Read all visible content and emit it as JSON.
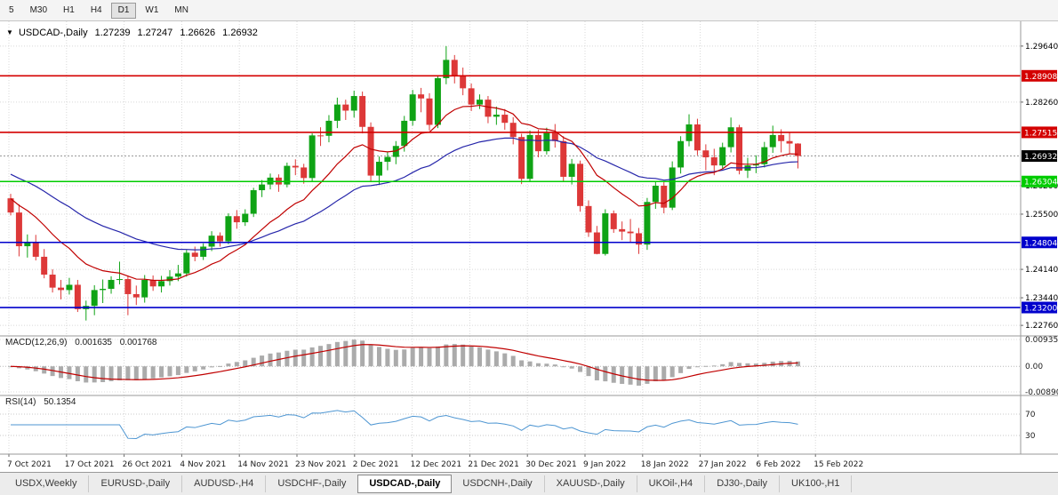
{
  "toolbar": {
    "timeframes": [
      {
        "label": "5",
        "active": false
      },
      {
        "label": "M30",
        "active": false
      },
      {
        "label": "H1",
        "active": false
      },
      {
        "label": "H4",
        "active": false
      },
      {
        "label": "D1",
        "active": true
      },
      {
        "label": "W1",
        "active": false
      },
      {
        "label": "MN",
        "active": false
      }
    ]
  },
  "chart_header": {
    "dropdown_marker": "▼",
    "symbol": "USDCAD-,Daily",
    "open": "1.27239",
    "high": "1.27247",
    "low": "1.26626",
    "close": "1.26932"
  },
  "price_axis": {
    "ticks": [
      "1.29640",
      "1.28260",
      "1.26200",
      "1.25500",
      "1.24140",
      "1.23440",
      "1.22760"
    ]
  },
  "levels": {
    "hlines": [
      {
        "price": "1.28908",
        "color": "#D40000"
      },
      {
        "price": "1.27515",
        "color": "#D40000"
      },
      {
        "price": "1.26304",
        "color": "#00CC00"
      },
      {
        "price": "1.24804",
        "color": "#0000CC"
      },
      {
        "price": "1.23200",
        "color": "#0000CC"
      }
    ],
    "current_price": {
      "value": "1.26932",
      "badge_color": "#000000"
    }
  },
  "chart_data": {
    "type": "candlestick",
    "symbol": "USDCAD",
    "timeframe": "Daily",
    "title": "USDCAD-,Daily",
    "y_range": [
      1.225,
      1.3025
    ],
    "x_labels": [
      "7 Oct 2021",
      "17 Oct 2021",
      "26 Oct 2021",
      "4 Nov 2021",
      "14 Nov 2021",
      "23 Nov 2021",
      "2 Dec 2021",
      "12 Dec 2021",
      "21 Dec 2021",
      "30 Dec 2021",
      "9 Jan 2022",
      "18 Jan 2022",
      "27 Jan 2022",
      "6 Feb 2022",
      "15 Feb 2022"
    ],
    "up_color": "#0FA315",
    "down_color": "#DD3838",
    "ma_fast": {
      "period": 13,
      "color": "#C00000"
    },
    "ma_slow": {
      "period": 34,
      "color": "#2626AA"
    },
    "candles_ohlc": [
      [
        1.2589,
        1.26,
        1.2547,
        1.2554
      ],
      [
        1.2554,
        1.2574,
        1.2446,
        1.2471
      ],
      [
        1.2471,
        1.25,
        1.2443,
        1.2482
      ],
      [
        1.2482,
        1.2499,
        1.2436,
        1.2445
      ],
      [
        1.2445,
        1.2464,
        1.2392,
        1.2401
      ],
      [
        1.2401,
        1.2414,
        1.2357,
        1.2369
      ],
      [
        1.2369,
        1.2388,
        1.234,
        1.2363
      ],
      [
        1.2363,
        1.2393,
        1.2352,
        1.2376
      ],
      [
        1.2376,
        1.2388,
        1.2309,
        1.2316
      ],
      [
        1.2316,
        1.2337,
        1.2288,
        1.2324
      ],
      [
        1.2324,
        1.2375,
        1.2301,
        1.2363
      ],
      [
        1.2363,
        1.2389,
        1.2331,
        1.2366
      ],
      [
        1.2366,
        1.2397,
        1.2354,
        1.2388
      ],
      [
        1.2388,
        1.2433,
        1.2377,
        1.239
      ],
      [
        1.239,
        1.2399,
        1.2301,
        1.2353
      ],
      [
        1.2353,
        1.2374,
        1.2326,
        1.2345
      ],
      [
        1.2345,
        1.24,
        1.2332,
        1.2388
      ],
      [
        1.2388,
        1.2399,
        1.2361,
        1.2372
      ],
      [
        1.2372,
        1.2398,
        1.2357,
        1.2385
      ],
      [
        1.2385,
        1.2412,
        1.2374,
        1.2396
      ],
      [
        1.2396,
        1.2425,
        1.2385,
        1.2404
      ],
      [
        1.2404,
        1.2462,
        1.2396,
        1.2455
      ],
      [
        1.2455,
        1.247,
        1.2434,
        1.2445
      ],
      [
        1.2445,
        1.2478,
        1.2437,
        1.247
      ],
      [
        1.247,
        1.2508,
        1.2459,
        1.2497
      ],
      [
        1.2497,
        1.2505,
        1.247,
        1.2483
      ],
      [
        1.2483,
        1.2552,
        1.2476,
        1.2545
      ],
      [
        1.2545,
        1.256,
        1.2514,
        1.253
      ],
      [
        1.253,
        1.2562,
        1.2521,
        1.2551
      ],
      [
        1.2551,
        1.2615,
        1.2543,
        1.2609
      ],
      [
        1.2609,
        1.2634,
        1.2592,
        1.2623
      ],
      [
        1.2623,
        1.265,
        1.2611,
        1.264
      ],
      [
        1.264,
        1.2648,
        1.2605,
        1.2623
      ],
      [
        1.2623,
        1.2677,
        1.2616,
        1.2669
      ],
      [
        1.2669,
        1.2685,
        1.2646,
        1.2665
      ],
      [
        1.2665,
        1.2674,
        1.2625,
        1.2639
      ],
      [
        1.2639,
        1.2749,
        1.2632,
        1.2744
      ],
      [
        1.2744,
        1.2764,
        1.2718,
        1.2743
      ],
      [
        1.2743,
        1.2794,
        1.2727,
        1.278
      ],
      [
        1.278,
        1.2837,
        1.2762,
        1.282
      ],
      [
        1.282,
        1.2832,
        1.2782,
        1.2805
      ],
      [
        1.2805,
        1.2854,
        1.2788,
        1.2841
      ],
      [
        1.2841,
        1.2852,
        1.2749,
        1.2765
      ],
      [
        1.2765,
        1.2776,
        1.2632,
        1.2645
      ],
      [
        1.2645,
        1.2692,
        1.2622,
        1.2679
      ],
      [
        1.2679,
        1.2704,
        1.2658,
        1.2691
      ],
      [
        1.2691,
        1.273,
        1.2673,
        1.2718
      ],
      [
        1.2718,
        1.2792,
        1.2704,
        1.278
      ],
      [
        1.278,
        1.2856,
        1.2768,
        1.2845
      ],
      [
        1.2845,
        1.2861,
        1.2801,
        1.2835
      ],
      [
        1.2835,
        1.2848,
        1.2756,
        1.277
      ],
      [
        1.277,
        1.2892,
        1.2762,
        1.2885
      ],
      [
        1.2885,
        1.2964,
        1.287,
        1.293
      ],
      [
        1.293,
        1.2942,
        1.2872,
        1.289
      ],
      [
        1.289,
        1.2911,
        1.2843,
        1.286
      ],
      [
        1.286,
        1.2872,
        1.2804,
        1.282
      ],
      [
        1.282,
        1.2845,
        1.2809,
        1.2832
      ],
      [
        1.2832,
        1.2841,
        1.2774,
        1.279
      ],
      [
        1.279,
        1.2815,
        1.277,
        1.2795
      ],
      [
        1.2795,
        1.2809,
        1.2758,
        1.2775
      ],
      [
        1.2775,
        1.2789,
        1.2722,
        1.274
      ],
      [
        1.274,
        1.2748,
        1.2624,
        1.2637
      ],
      [
        1.2637,
        1.2756,
        1.263,
        1.2745
      ],
      [
        1.2745,
        1.2758,
        1.269,
        1.2705
      ],
      [
        1.2705,
        1.2763,
        1.2697,
        1.275
      ],
      [
        1.275,
        1.2772,
        1.2714,
        1.273
      ],
      [
        1.273,
        1.2742,
        1.2629,
        1.2642
      ],
      [
        1.2642,
        1.2686,
        1.2623,
        1.2674
      ],
      [
        1.2674,
        1.2682,
        1.2556,
        1.257
      ],
      [
        1.257,
        1.2584,
        1.2494,
        1.2505
      ],
      [
        1.2505,
        1.2521,
        1.2451,
        1.2452
      ],
      [
        1.2452,
        1.2562,
        1.2448,
        1.2552
      ],
      [
        1.2552,
        1.2559,
        1.2504,
        1.2513
      ],
      [
        1.2513,
        1.2532,
        1.2486,
        1.2507
      ],
      [
        1.2507,
        1.2538,
        1.248,
        1.2503
      ],
      [
        1.2503,
        1.2516,
        1.2452,
        1.2475
      ],
      [
        1.2475,
        1.259,
        1.2462,
        1.258
      ],
      [
        1.258,
        1.2632,
        1.2563,
        1.262
      ],
      [
        1.262,
        1.2629,
        1.2552,
        1.2566
      ],
      [
        1.2566,
        1.268,
        1.256,
        1.2665
      ],
      [
        1.2665,
        1.2742,
        1.265,
        1.273
      ],
      [
        1.273,
        1.2796,
        1.2717,
        1.2771
      ],
      [
        1.2771,
        1.2785,
        1.2695,
        1.2707
      ],
      [
        1.2707,
        1.2722,
        1.2658,
        1.269
      ],
      [
        1.269,
        1.2711,
        1.2646,
        1.267
      ],
      [
        1.267,
        1.2726,
        1.2661,
        1.2715
      ],
      [
        1.2715,
        1.2788,
        1.2702,
        1.2764
      ],
      [
        1.2764,
        1.277,
        1.2648,
        1.2657
      ],
      [
        1.2657,
        1.2689,
        1.2639,
        1.267
      ],
      [
        1.267,
        1.2695,
        1.2651,
        1.2673
      ],
      [
        1.2673,
        1.2728,
        1.2665,
        1.2715
      ],
      [
        1.2715,
        1.2768,
        1.2701,
        1.2745
      ],
      [
        1.2745,
        1.2759,
        1.2702,
        1.273
      ],
      [
        1.273,
        1.2751,
        1.27,
        1.27239
      ],
      [
        1.27239,
        1.27247,
        1.26626,
        1.26932
      ]
    ]
  },
  "macd": {
    "label": "MACD(12,26,9)",
    "value_macd": "0.001635",
    "value_signal": "0.001768",
    "axis_labels": [
      "0.00935",
      "0.00",
      "-0.00890"
    ],
    "range": [
      -0.0089,
      0.00935
    ],
    "histogram_color": "#ABABAB",
    "signal_color": "#C00000"
  },
  "rsi": {
    "label": "RSI(14)",
    "value": "50.1354",
    "levels": [
      "70",
      "30"
    ],
    "line_color": "#4E96D2"
  },
  "tabs": [
    {
      "label": "USDX,Weekly",
      "active": false
    },
    {
      "label": "EURUSD-,Daily",
      "active": false
    },
    {
      "label": "AUDUSD-,H4",
      "active": false
    },
    {
      "label": "USDCHF-,Daily",
      "active": false
    },
    {
      "label": "USDCAD-,Daily",
      "active": true
    },
    {
      "label": "USDCNH-,Daily",
      "active": false
    },
    {
      "label": "XAUUSD-,Daily",
      "active": false
    },
    {
      "label": "UKOil-,H4",
      "active": false
    },
    {
      "label": "DJ30-,Daily",
      "active": false
    },
    {
      "label": "UK100-,H1",
      "active": false
    }
  ]
}
